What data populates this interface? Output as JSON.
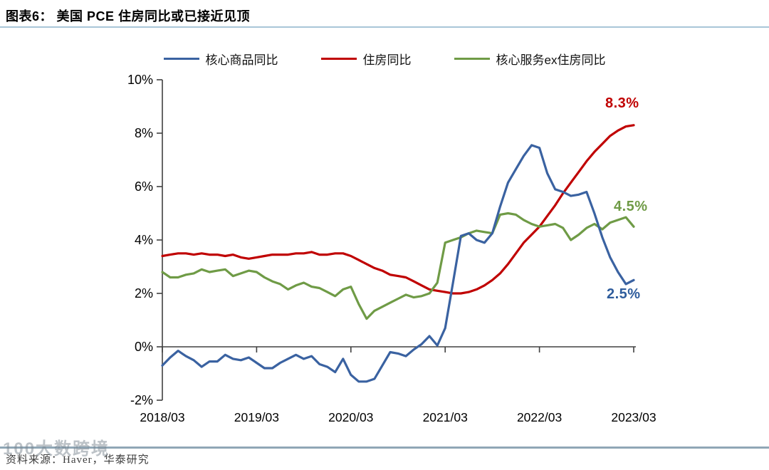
{
  "header": {
    "title": "图表6：  美国 PCE 住房同比或已接近见顶"
  },
  "footer": {
    "source": "资料来源：Haver，华泰研究",
    "watermark": "100大数跨境"
  },
  "chart_data": {
    "type": "line",
    "title": "美国 PCE 住房同比或已接近见顶",
    "ylim": [
      -2,
      10
    ],
    "grid": false,
    "legend_position": "top-center",
    "y_ticks": [
      {
        "label": "10%",
        "value": 10
      },
      {
        "label": "8%",
        "value": 8
      },
      {
        "label": "6%",
        "value": 6
      },
      {
        "label": "4%",
        "value": 4
      },
      {
        "label": "2%",
        "value": 2
      },
      {
        "label": "0%",
        "value": 0
      },
      {
        "label": "-2%",
        "value": -2
      }
    ],
    "x_ticks": [
      {
        "label": "2018/03",
        "index": 0
      },
      {
        "label": "2019/03",
        "index": 12
      },
      {
        "label": "2020/03",
        "index": 24
      },
      {
        "label": "2021/03",
        "index": 36
      },
      {
        "label": "2022/03",
        "index": 48
      },
      {
        "label": "2023/03",
        "index": 60
      }
    ],
    "x": [
      "2018/03",
      "2018/04",
      "2018/05",
      "2018/06",
      "2018/07",
      "2018/08",
      "2018/09",
      "2018/10",
      "2018/11",
      "2018/12",
      "2019/01",
      "2019/02",
      "2019/03",
      "2019/04",
      "2019/05",
      "2019/06",
      "2019/07",
      "2019/08",
      "2019/09",
      "2019/10",
      "2019/11",
      "2019/12",
      "2020/01",
      "2020/02",
      "2020/03",
      "2020/04",
      "2020/05",
      "2020/06",
      "2020/07",
      "2020/08",
      "2020/09",
      "2020/10",
      "2020/11",
      "2020/12",
      "2021/01",
      "2021/02",
      "2021/03",
      "2021/04",
      "2021/05",
      "2021/06",
      "2021/07",
      "2021/08",
      "2021/09",
      "2021/10",
      "2021/11",
      "2021/12",
      "2022/01",
      "2022/02",
      "2022/03",
      "2022/04",
      "2022/05",
      "2022/06",
      "2022/07",
      "2022/08",
      "2022/09",
      "2022/10",
      "2022/11",
      "2022/12",
      "2023/01",
      "2023/02",
      "2023/03"
    ],
    "series": [
      {
        "id": "core-goods",
        "name": "核心商品同比",
        "color": "#3a62a1",
        "values": [
          -0.7,
          -0.4,
          -0.15,
          -0.35,
          -0.5,
          -0.75,
          -0.55,
          -0.55,
          -0.3,
          -0.45,
          -0.5,
          -0.4,
          -0.6,
          -0.8,
          -0.8,
          -0.6,
          -0.45,
          -0.3,
          -0.45,
          -0.35,
          -0.65,
          -0.75,
          -0.95,
          -0.45,
          -1.05,
          -1.3,
          -1.3,
          -1.2,
          -0.7,
          -0.2,
          -0.25,
          -0.35,
          -0.1,
          0.1,
          0.4,
          0.05,
          0.7,
          2.4,
          4.15,
          4.25,
          4.0,
          3.9,
          4.25,
          5.25,
          6.15,
          6.65,
          7.15,
          7.55,
          7.45,
          6.5,
          5.9,
          5.8,
          5.65,
          5.7,
          5.8,
          5.0,
          4.1,
          3.35,
          2.8,
          2.35,
          2.5
        ]
      },
      {
        "id": "housing",
        "name": "住房同比",
        "color": "#c00000",
        "values": [
          3.4,
          3.45,
          3.5,
          3.5,
          3.45,
          3.5,
          3.45,
          3.45,
          3.4,
          3.45,
          3.35,
          3.3,
          3.35,
          3.4,
          3.45,
          3.45,
          3.45,
          3.5,
          3.5,
          3.55,
          3.45,
          3.45,
          3.5,
          3.5,
          3.4,
          3.25,
          3.1,
          2.95,
          2.85,
          2.7,
          2.65,
          2.6,
          2.45,
          2.3,
          2.15,
          2.1,
          2.05,
          2.0,
          2.0,
          2.05,
          2.15,
          2.3,
          2.5,
          2.75,
          3.1,
          3.5,
          3.9,
          4.2,
          4.5,
          4.9,
          5.3,
          5.75,
          6.15,
          6.55,
          6.95,
          7.3,
          7.6,
          7.9,
          8.1,
          8.25,
          8.3
        ]
      },
      {
        "id": "core-services-ex-housing",
        "name": "核心服务ex住房同比",
        "color": "#6f9b46",
        "values": [
          2.8,
          2.6,
          2.6,
          2.7,
          2.75,
          2.9,
          2.8,
          2.85,
          2.9,
          2.65,
          2.75,
          2.85,
          2.8,
          2.6,
          2.45,
          2.35,
          2.15,
          2.3,
          2.4,
          2.25,
          2.2,
          2.05,
          1.9,
          2.15,
          2.25,
          1.6,
          1.05,
          1.35,
          1.5,
          1.65,
          1.8,
          1.95,
          1.85,
          1.9,
          2.0,
          2.4,
          3.9,
          4.0,
          4.1,
          4.25,
          4.35,
          4.3,
          4.25,
          4.95,
          5.0,
          4.95,
          4.75,
          4.6,
          4.5,
          4.55,
          4.6,
          4.45,
          4.0,
          4.2,
          4.45,
          4.6,
          4.4,
          4.65,
          4.75,
          4.85,
          4.5
        ]
      }
    ],
    "annotations": [
      {
        "text": "8.3%",
        "series": "住房同比",
        "color": "#c00000"
      },
      {
        "text": "4.5%",
        "series": "核心服务ex住房同比",
        "color": "#6f9b46"
      },
      {
        "text": "2.5%",
        "series": "核心商品同比",
        "color": "#2e5c9c"
      }
    ]
  }
}
